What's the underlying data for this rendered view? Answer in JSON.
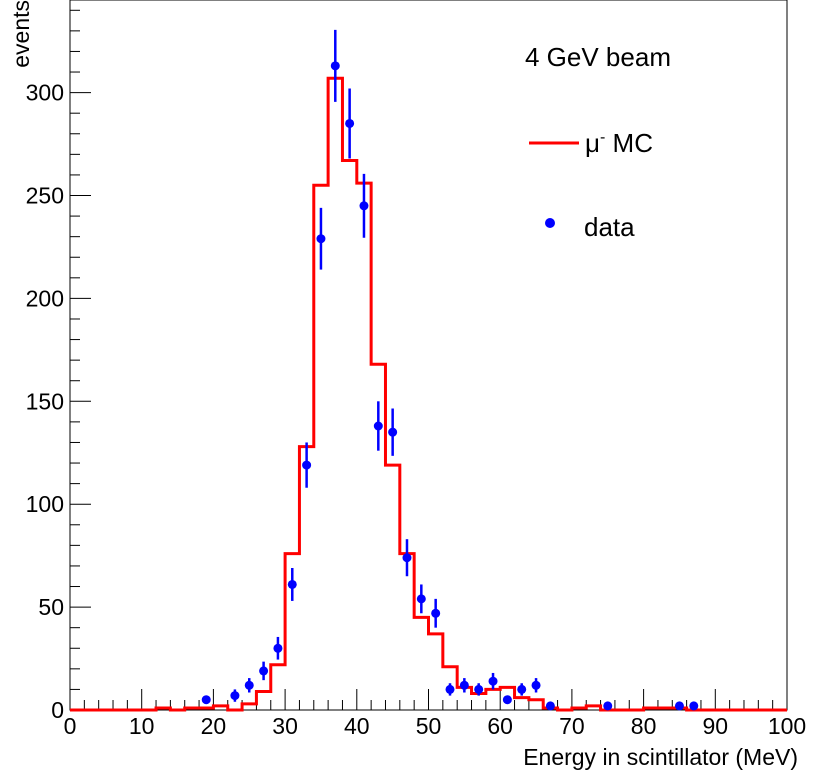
{
  "chart_data": {
    "type": "histogram",
    "title": "",
    "xlabel": "Energy in scintillator (MeV)",
    "ylabel": "events",
    "xlim": [
      0,
      100
    ],
    "ylim": [
      0,
      345
    ],
    "x_ticks": [
      0,
      10,
      20,
      30,
      40,
      50,
      60,
      70,
      80,
      90,
      100
    ],
    "y_ticks": [
      0,
      50,
      100,
      150,
      200,
      250,
      300
    ],
    "annotation": "4 GeV beam",
    "legend": {
      "position": "top-right",
      "entries": [
        {
          "label": "μ",
          "superscript": "-",
          "suffix": " MC",
          "style": "line",
          "color": "#ff0000"
        },
        {
          "label": "data",
          "style": "marker",
          "color": "#0000ff"
        }
      ]
    },
    "series": [
      {
        "name": "μ- MC",
        "kind": "step",
        "color": "#ff0000",
        "bin_edges": [
          0,
          2,
          4,
          6,
          8,
          10,
          12,
          14,
          16,
          18,
          20,
          22,
          24,
          26,
          28,
          30,
          32,
          34,
          36,
          38,
          40,
          42,
          44,
          46,
          48,
          50,
          52,
          54,
          56,
          58,
          60,
          62,
          64,
          66,
          68,
          70,
          72,
          74,
          76,
          78,
          80,
          82,
          84,
          86,
          88,
          90,
          92,
          94,
          96,
          98,
          100
        ],
        "values": [
          0,
          0,
          0,
          0,
          0,
          0,
          1,
          0,
          1,
          1,
          2,
          0,
          3,
          9,
          22,
          76,
          128,
          255,
          307,
          267,
          256,
          168,
          119,
          76,
          45,
          37,
          21,
          11,
          8,
          10,
          11,
          6,
          5,
          1,
          0,
          1,
          2,
          0,
          0,
          0,
          1,
          1,
          1,
          0,
          0,
          0,
          0,
          0,
          0,
          0
        ]
      },
      {
        "name": "data",
        "kind": "points",
        "color": "#0000ff",
        "x": [
          19,
          23,
          25,
          27,
          29,
          31,
          33,
          35,
          37,
          39,
          41,
          43,
          45,
          47,
          49,
          51,
          53,
          55,
          57,
          59,
          61,
          63,
          65,
          67,
          75,
          85,
          87
        ],
        "y": [
          5,
          7,
          12,
          19,
          30,
          61,
          119,
          229,
          313,
          285,
          245,
          138,
          135,
          74,
          54,
          47,
          10,
          12,
          10,
          14,
          5,
          10,
          12,
          2,
          2,
          2,
          2
        ],
        "yerr": [
          2,
          3,
          3.5,
          4.5,
          5.5,
          8,
          11,
          15,
          17.5,
          17,
          15.5,
          12,
          11.5,
          9,
          7,
          7,
          3,
          3.5,
          3,
          4,
          2,
          3,
          3.5,
          1.5,
          1.5,
          1.5,
          1.5
        ]
      }
    ]
  }
}
